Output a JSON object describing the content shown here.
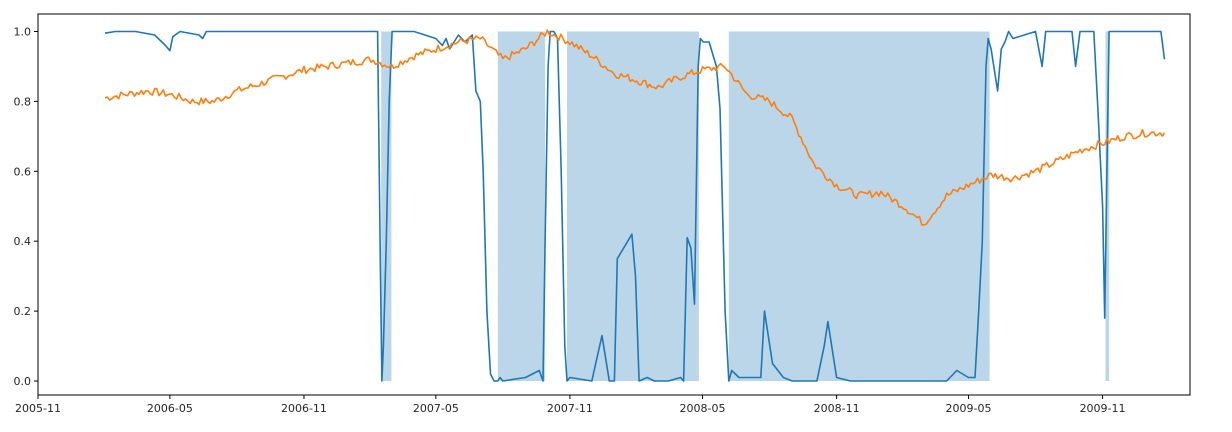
{
  "chart_data": {
    "type": "line",
    "title": "",
    "xlabel": "",
    "ylabel": "",
    "xlim": [
      "2005-11-01",
      "2010-03-01"
    ],
    "ylim": [
      -0.04,
      1.05
    ],
    "grid": false,
    "legend": "none",
    "x_ticks": [
      "2005-11",
      "2006-05",
      "2006-11",
      "2007-05",
      "2007-11",
      "2008-05",
      "2008-11",
      "2009-05",
      "2009-11"
    ],
    "y_ticks": [
      "0.0",
      "0.2",
      "0.4",
      "0.6",
      "0.8",
      "1.0"
    ],
    "colors": {
      "series1": "#1f77b4",
      "series2": "#ff7f0e",
      "shade": "#1f77b4"
    },
    "shaded_regions": [
      {
        "start": "2007-02-15",
        "end": "2007-03-01",
        "from": 0,
        "to": 1
      },
      {
        "start": "2007-07-25",
        "end": "2007-09-28",
        "from": 0,
        "to": 1
      },
      {
        "start": "2007-10-28",
        "end": "2008-04-26",
        "from": 0,
        "to": 1
      },
      {
        "start": "2008-06-06",
        "end": "2009-05-30",
        "from": 0,
        "to": 1
      },
      {
        "start": "2009-11-05",
        "end": "2009-11-10",
        "from": 0,
        "to": 1
      }
    ],
    "series": [
      {
        "x": [
          "2006-02-01",
          "2006-02-15",
          "2006-03-15",
          "2006-04-10",
          "2006-04-25",
          "2006-05-01",
          "2006-05-05",
          "2006-05-15",
          "2006-06-10",
          "2006-06-15",
          "2006-06-20",
          "2006-08-01",
          "2007-01-01",
          "2007-02-10",
          "2007-02-14",
          "2007-02-16",
          "2007-02-18",
          "2007-02-22",
          "2007-02-26",
          "2007-03-02",
          "2007-03-10",
          "2007-04-01",
          "2007-05-01",
          "2007-05-10",
          "2007-05-15",
          "2007-05-20",
          "2007-06-01",
          "2007-06-10",
          "2007-06-20",
          "2007-06-25",
          "2007-07-01",
          "2007-07-05",
          "2007-07-10",
          "2007-07-15",
          "2007-07-20",
          "2007-07-25",
          "2007-07-28",
          "2007-08-01",
          "2007-09-01",
          "2007-09-20",
          "2007-09-25",
          "2007-09-28",
          "2007-10-02",
          "2007-10-05",
          "2007-10-10",
          "2007-10-15",
          "2007-10-20",
          "2007-10-25",
          "2007-10-28",
          "2007-11-01",
          "2007-12-01",
          "2007-12-15",
          "2007-12-25",
          "2008-01-01",
          "2008-01-05",
          "2008-01-25",
          "2008-01-30",
          "2008-02-04",
          "2008-02-15",
          "2008-02-25",
          "2008-03-15",
          "2008-04-01",
          "2008-04-05",
          "2008-04-10",
          "2008-04-15",
          "2008-04-20",
          "2008-04-25",
          "2008-04-28",
          "2008-05-02",
          "2008-05-10",
          "2008-05-20",
          "2008-05-25",
          "2008-06-01",
          "2008-06-06",
          "2008-06-10",
          "2008-06-20",
          "2008-07-01",
          "2008-07-20",
          "2008-07-25",
          "2008-08-05",
          "2008-08-20",
          "2008-09-01",
          "2008-10-05",
          "2008-10-15",
          "2008-10-20",
          "2008-11-01",
          "2008-11-20",
          "2009-01-01",
          "2009-02-01",
          "2009-04-01",
          "2009-04-15",
          "2009-05-01",
          "2009-05-10",
          "2009-05-15",
          "2009-05-20",
          "2009-05-25",
          "2009-05-28",
          "2009-06-01",
          "2009-06-10",
          "2009-06-15",
          "2009-06-20",
          "2009-06-25",
          "2009-07-01",
          "2009-08-01",
          "2009-08-10",
          "2009-08-15",
          "2009-09-01",
          "2009-09-20",
          "2009-09-25",
          "2009-10-01",
          "2009-10-20",
          "2009-10-25",
          "2009-11-01",
          "2009-11-04",
          "2009-11-07",
          "2009-11-10",
          "2009-11-15",
          "2009-11-20",
          "2009-12-01",
          "2010-01-01",
          "2010-01-20",
          "2010-01-25"
        ],
        "values": [
          0.995,
          1.0,
          1.0,
          0.99,
          0.96,
          0.945,
          0.985,
          1.0,
          0.99,
          0.98,
          1.0,
          1.0,
          1.0,
          1.0,
          0.3,
          0.0,
          0.1,
          0.4,
          0.8,
          1.0,
          1.0,
          1.0,
          0.98,
          0.96,
          0.98,
          0.95,
          0.99,
          0.97,
          0.99,
          0.83,
          0.8,
          0.6,
          0.2,
          0.02,
          0.0,
          0.0,
          0.01,
          0.0,
          0.01,
          0.03,
          0.0,
          0.4,
          0.9,
          1.0,
          1.0,
          0.98,
          0.6,
          0.1,
          0.0,
          0.01,
          0.0,
          0.13,
          0.0,
          0.0,
          0.35,
          0.42,
          0.3,
          0.0,
          0.01,
          0.0,
          0.0,
          0.01,
          0.0,
          0.41,
          0.38,
          0.22,
          0.9,
          0.98,
          0.97,
          0.97,
          0.9,
          0.78,
          0.2,
          0.0,
          0.03,
          0.01,
          0.01,
          0.01,
          0.2,
          0.05,
          0.01,
          0.0,
          0.0,
          0.1,
          0.17,
          0.01,
          0.0,
          0.0,
          0.0,
          0.0,
          0.03,
          0.01,
          0.01,
          0.2,
          0.4,
          0.9,
          0.98,
          0.95,
          0.83,
          0.95,
          0.97,
          1.0,
          0.98,
          1.0,
          0.9,
          1.0,
          1.0,
          1.0,
          0.9,
          1.0,
          1.0,
          0.8,
          0.5,
          0.18,
          0.6,
          1.0,
          1.0,
          1.0,
          1.0,
          1.0,
          1.0,
          0.92
        ]
      },
      {
        "x": [
          "2006-02-01",
          "2006-03-01",
          "2006-04-01",
          "2006-05-01",
          "2006-06-01",
          "2006-07-01",
          "2006-08-01",
          "2006-09-01",
          "2006-10-01",
          "2006-11-01",
          "2006-12-01",
          "2007-01-01",
          "2007-02-01",
          "2007-03-01",
          "2007-04-01",
          "2007-05-01",
          "2007-06-01",
          "2007-07-01",
          "2007-08-01",
          "2007-09-01",
          "2007-10-01",
          "2007-11-01",
          "2007-12-01",
          "2008-01-01",
          "2008-02-01",
          "2008-03-01",
          "2008-04-01",
          "2008-05-01",
          "2008-06-01",
          "2008-07-01",
          "2008-08-01",
          "2008-09-01",
          "2008-10-01",
          "2008-11-01",
          "2008-12-01",
          "2009-01-01",
          "2009-02-01",
          "2009-03-01",
          "2009-04-01",
          "2009-05-01",
          "2009-06-01",
          "2009-07-01",
          "2009-08-01",
          "2009-09-01",
          "2009-10-01",
          "2009-11-01",
          "2009-12-01",
          "2010-01-01",
          "2010-01-25"
        ],
        "values": [
          0.81,
          0.82,
          0.83,
          0.82,
          0.8,
          0.8,
          0.83,
          0.85,
          0.87,
          0.89,
          0.9,
          0.91,
          0.92,
          0.9,
          0.93,
          0.95,
          0.97,
          0.98,
          0.92,
          0.95,
          1.0,
          0.97,
          0.93,
          0.88,
          0.86,
          0.84,
          0.87,
          0.89,
          0.9,
          0.82,
          0.8,
          0.75,
          0.62,
          0.56,
          0.53,
          0.54,
          0.5,
          0.45,
          0.53,
          0.56,
          0.59,
          0.58,
          0.6,
          0.63,
          0.66,
          0.68,
          0.7,
          0.71,
          0.71
        ]
      }
    ]
  }
}
